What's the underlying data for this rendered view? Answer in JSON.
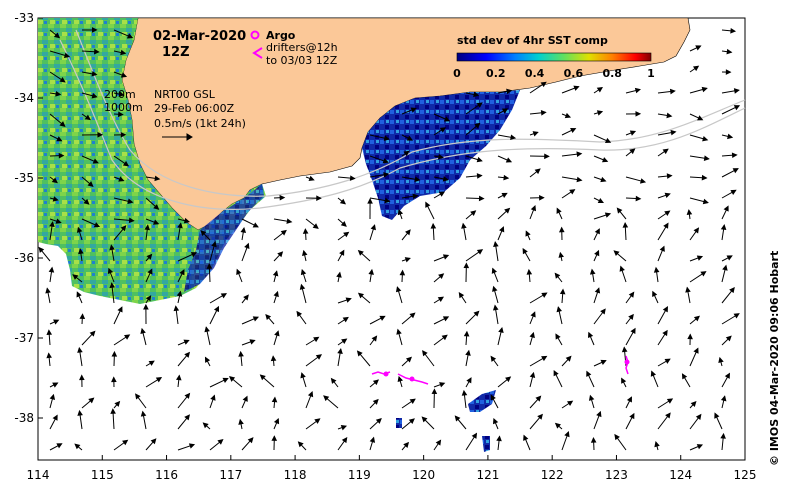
{
  "map": {
    "date_title": "02-Mar-2020",
    "time_title": "12Z",
    "argo_label": "Argo",
    "drifters_label": "drifters@12h",
    "drifters_until": "to 03/03 12Z",
    "isobath_shallow": "200m",
    "isobath_deep": "1000m",
    "product_name": "NRT00 GSL",
    "product_time": "29-Feb 06:00Z",
    "vector_scale": "0.5m/s (1kt 24h)",
    "colorbar_title": "std dev of 4hr SST comp",
    "colorbar_ticks": [
      "0",
      "0.2",
      "0.4",
      "0.6",
      "0.8",
      "1"
    ],
    "credit": "© IMOS 04-Mar-2020 09:06 Hobart",
    "x_ticks": [
      "114",
      "115",
      "116",
      "117",
      "118",
      "119",
      "120",
      "121",
      "122",
      "123",
      "124",
      "125"
    ],
    "y_ticks": [
      "-33",
      "-34",
      "-35",
      "-36",
      "-37",
      "-38"
    ],
    "colors": {
      "land": "#fbc898",
      "argo": "#ff00ff",
      "drifter": "#ff00ff",
      "isobath": "#c8c8c8"
    }
  }
}
